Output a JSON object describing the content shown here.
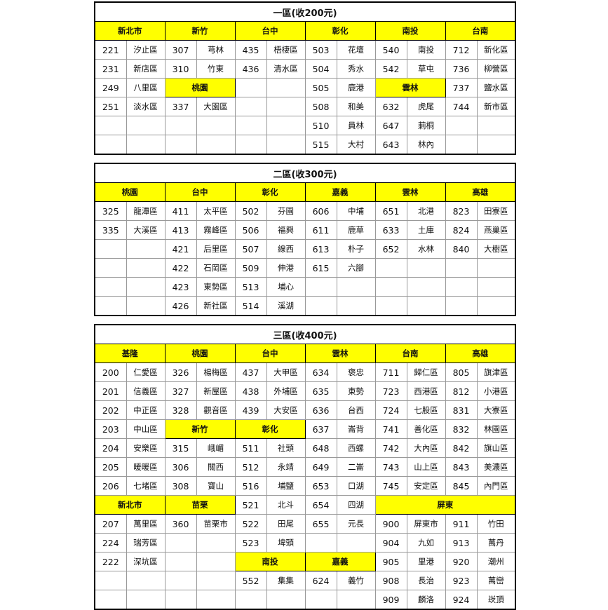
{
  "colors": {
    "header_bg": "#ffff00",
    "border": "#000000"
  },
  "zones": [
    {
      "title": "一區(收200元)",
      "rows": [
        [
          {
            "h": "新北市",
            "span": 2
          },
          {
            "h": "新竹",
            "span": 2
          },
          {
            "h": "台中",
            "span": 2
          },
          {
            "h": "彰化",
            "span": 2
          },
          {
            "h": "南投",
            "span": 2
          },
          {
            "h": "台南",
            "span": 2
          }
        ],
        [
          "221",
          "汐止區",
          "307",
          "芎林",
          "435",
          "梧棲區",
          "503",
          "花壇",
          "540",
          "南投",
          "712",
          "新化區"
        ],
        [
          "231",
          "新店區",
          "310",
          "竹東",
          "436",
          "清水區",
          "504",
          "秀水",
          "542",
          "草屯",
          "736",
          "柳營區"
        ],
        [
          "249",
          "八里區",
          {
            "h": "桃園",
            "span": 2
          },
          "",
          "",
          "505",
          "鹿港",
          {
            "h": "雲林",
            "span": 2
          },
          "737",
          "鹽水區"
        ],
        [
          "251",
          "淡水區",
          "337",
          "大園區",
          "",
          "",
          "508",
          "和美",
          "632",
          "虎尾",
          "744",
          "新市區"
        ],
        [
          "",
          "",
          "",
          "",
          "",
          "",
          "510",
          "員林",
          "647",
          "莿桐",
          "",
          ""
        ],
        [
          "",
          "",
          "",
          "",
          "",
          "",
          "515",
          "大村",
          "643",
          "林內",
          "",
          ""
        ]
      ]
    },
    {
      "title": "二區(收300元)",
      "rows": [
        [
          {
            "h": "桃園",
            "span": 2
          },
          {
            "h": "台中",
            "span": 2
          },
          {
            "h": "彰化",
            "span": 2
          },
          {
            "h": "嘉義",
            "span": 2
          },
          {
            "h": "雲林",
            "span": 2
          },
          {
            "h": "高雄",
            "span": 2
          }
        ],
        [
          "325",
          "龍潭區",
          "411",
          "太平區",
          "502",
          "芬園",
          "606",
          "中埔",
          "651",
          "北港",
          "823",
          "田寮區"
        ],
        [
          "335",
          "大溪區",
          "413",
          "霧峰區",
          "506",
          "福興",
          "611",
          "鹿草",
          "633",
          "土庫",
          "824",
          "燕巢區"
        ],
        [
          "",
          "",
          "421",
          "后里區",
          "507",
          "線西",
          "613",
          "朴子",
          "652",
          "水林",
          "840",
          "大樹區"
        ],
        [
          "",
          "",
          "422",
          "石岡區",
          "509",
          "伸港",
          "615",
          "六腳",
          "",
          "",
          "",
          ""
        ],
        [
          "",
          "",
          "423",
          "東勢區",
          "513",
          "埔心",
          "",
          "",
          "",
          "",
          "",
          ""
        ],
        [
          "",
          "",
          "426",
          "新社區",
          "514",
          "溪湖",
          "",
          "",
          "",
          "",
          "",
          ""
        ]
      ]
    },
    {
      "title": "三區(收400元)",
      "rows": [
        [
          {
            "h": "基隆",
            "span": 2
          },
          {
            "h": "桃園",
            "span": 2
          },
          {
            "h": "台中",
            "span": 2
          },
          {
            "h": "雲林",
            "span": 2
          },
          {
            "h": "台南",
            "span": 2
          },
          {
            "h": "高雄",
            "span": 2
          }
        ],
        [
          "200",
          "仁愛區",
          "326",
          "楊梅區",
          "437",
          "大甲區",
          "634",
          "褒忠",
          "711",
          "歸仁區",
          "805",
          "旗津區"
        ],
        [
          "201",
          "信義區",
          "327",
          "新屋區",
          "438",
          "外埔區",
          "635",
          "東勢",
          "723",
          "西港區",
          "812",
          "小港區"
        ],
        [
          "202",
          "中正區",
          "328",
          "觀音區",
          "439",
          "大安區",
          "636",
          "台西",
          "724",
          "七股區",
          "831",
          "大寮區"
        ],
        [
          "203",
          "中山區",
          {
            "h": "新竹",
            "span": 2
          },
          {
            "h": "彰化",
            "span": 2
          },
          "637",
          "崙背",
          "741",
          "善化區",
          "832",
          "林園區"
        ],
        [
          "204",
          "安樂區",
          "315",
          "峨嵋",
          "511",
          "社頭",
          "648",
          "西螺",
          "742",
          "大內區",
          "842",
          "旗山區"
        ],
        [
          "205",
          "暖暖區",
          "306",
          "關西",
          "512",
          "永靖",
          "649",
          "二崙",
          "743",
          "山上區",
          "843",
          "美濃區"
        ],
        [
          "206",
          "七堵區",
          "308",
          "寶山",
          "516",
          "埔鹽",
          "653",
          "口湖",
          "745",
          "安定區",
          "845",
          "內門區"
        ],
        [
          {
            "h": "新北市",
            "span": 2
          },
          {
            "h": "苗栗",
            "span": 2
          },
          "521",
          "北斗",
          "654",
          "四湖",
          {
            "h": "屏東",
            "span": 4
          }
        ],
        [
          "207",
          "萬里區",
          "360",
          "苗栗市",
          "522",
          "田尾",
          "655",
          "元長",
          "900",
          "屏東市",
          "911",
          "竹田"
        ],
        [
          "224",
          "瑞芳區",
          "",
          "",
          "523",
          "埤頭",
          "",
          "",
          "904",
          "九如",
          "913",
          "萬丹"
        ],
        [
          "222",
          "深坑區",
          "",
          "",
          {
            "h": "南投",
            "span": 2
          },
          {
            "h": "嘉義",
            "span": 2
          },
          "905",
          "里港",
          "920",
          "潮州"
        ],
        [
          "",
          "",
          "",
          "",
          "552",
          "集集",
          "624",
          "義竹",
          "908",
          "長治",
          "923",
          "萬巒"
        ],
        [
          "",
          "",
          "",
          "",
          "",
          "",
          "",
          "",
          "909",
          "麟洛",
          "924",
          "崁頂"
        ]
      ]
    }
  ]
}
